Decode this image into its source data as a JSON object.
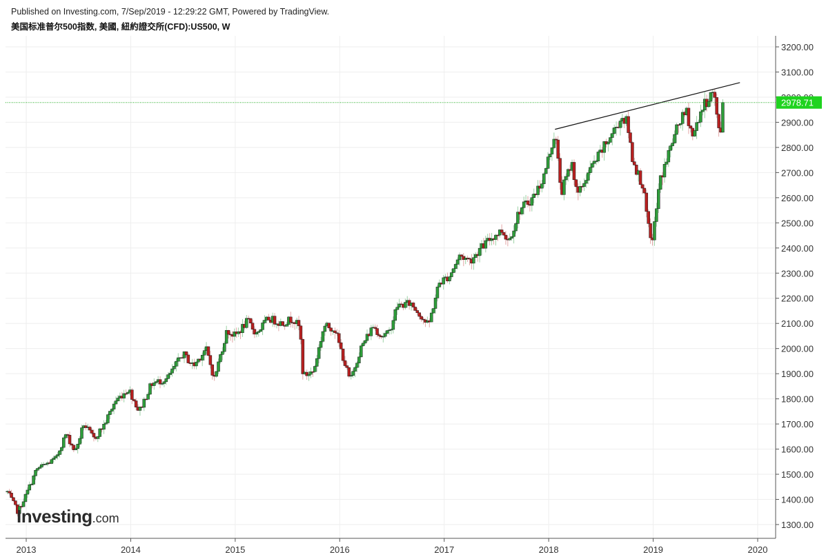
{
  "header": {
    "published": "Published on Investing.com, 7/Sep/2019 - 12:29:22 GMT, Powered by TradingView.",
    "instrument": "美国标准普尔500指数, 美國, 紐約證交所(CFD):US500, W"
  },
  "logo": {
    "main": "Investing",
    "suffix": ".com"
  },
  "colors": {
    "up": "#2e9e3a",
    "down": "#b82020",
    "wick_up": "#9bd1a4",
    "wick_down": "#e3a6a6",
    "grid": "#eeeeee",
    "last_price_line": "#1faa1f",
    "last_price_bg": "#1fd31f",
    "trendline": "#111111"
  },
  "chart_data": {
    "type": "candlestick",
    "title": "",
    "interval": "W",
    "xlabel": "",
    "ylabel": "",
    "ylim": [
      1270,
      3230
    ],
    "xlim": [
      2012.8,
      2020.2
    ],
    "y_ticks": [
      1300,
      1400,
      1500,
      1600,
      1700,
      1800,
      1900,
      2000,
      2100,
      2200,
      2300,
      2400,
      2500,
      2600,
      2700,
      2800,
      2900,
      3000,
      3100,
      3200
    ],
    "y_tick_labels": [
      "1300.00",
      "1400.00",
      "1500.00",
      "1600.00",
      "1700.00",
      "1800.00",
      "1900.00",
      "2000.00",
      "2100.00",
      "2200.00",
      "2300.00",
      "2400.00",
      "2500.00",
      "2600.00",
      "2700.00",
      "2800.00",
      "2900.00",
      "3000.00",
      "3100.00",
      "3200.00"
    ],
    "x_ticks": [
      2013,
      2014,
      2015,
      2016,
      2017,
      2018,
      2019,
      2020
    ],
    "x_tick_labels": [
      "2013",
      "2014",
      "2015",
      "2016",
      "2017",
      "2018",
      "2019",
      "2020"
    ],
    "last_price": 2978.71,
    "last_price_label": "2978.71",
    "trendline": [
      {
        "t": 2018.06,
        "v": 2872
      },
      {
        "t": 2019.83,
        "v": 3058
      }
    ],
    "anchors": [
      [
        2012.82,
        1430
      ],
      [
        2012.92,
        1350
      ],
      [
        2013.0,
        1420
      ],
      [
        2013.1,
        1520
      ],
      [
        2013.28,
        1560
      ],
      [
        2013.38,
        1660
      ],
      [
        2013.47,
        1590
      ],
      [
        2013.55,
        1700
      ],
      [
        2013.65,
        1640
      ],
      [
        2013.75,
        1700
      ],
      [
        2013.85,
        1790
      ],
      [
        2013.98,
        1840
      ],
      [
        2014.08,
        1750
      ],
      [
        2014.2,
        1860
      ],
      [
        2014.35,
        1880
      ],
      [
        2014.5,
        1980
      ],
      [
        2014.6,
        1930
      ],
      [
        2014.72,
        2000
      ],
      [
        2014.8,
        1880
      ],
      [
        2014.92,
        2070
      ],
      [
        2015.0,
        2050
      ],
      [
        2015.12,
        2110
      ],
      [
        2015.2,
        2060
      ],
      [
        2015.32,
        2120
      ],
      [
        2015.45,
        2100
      ],
      [
        2015.55,
        2120
      ],
      [
        2015.62,
        2080
      ],
      [
        2015.65,
        1890
      ],
      [
        2015.75,
        1910
      ],
      [
        2015.85,
        2090
      ],
      [
        2015.95,
        2080
      ],
      [
        2016.0,
        2010
      ],
      [
        2016.1,
        1870
      ],
      [
        2016.2,
        2000
      ],
      [
        2016.32,
        2090
      ],
      [
        2016.4,
        2050
      ],
      [
        2016.47,
        2060
      ],
      [
        2016.55,
        2170
      ],
      [
        2016.68,
        2180
      ],
      [
        2016.78,
        2130
      ],
      [
        2016.85,
        2090
      ],
      [
        2016.95,
        2260
      ],
      [
        2017.05,
        2290
      ],
      [
        2017.15,
        2370
      ],
      [
        2017.25,
        2350
      ],
      [
        2017.33,
        2390
      ],
      [
        2017.45,
        2440
      ],
      [
        2017.55,
        2470
      ],
      [
        2017.62,
        2430
      ],
      [
        2017.72,
        2550
      ],
      [
        2017.85,
        2600
      ],
      [
        2017.95,
        2680
      ],
      [
        2018.06,
        2860
      ],
      [
        2018.12,
        2620
      ],
      [
        2018.22,
        2740
      ],
      [
        2018.28,
        2610
      ],
      [
        2018.38,
        2700
      ],
      [
        2018.5,
        2780
      ],
      [
        2018.6,
        2850
      ],
      [
        2018.7,
        2920
      ],
      [
        2018.75,
        2900
      ],
      [
        2018.8,
        2760
      ],
      [
        2018.85,
        2700
      ],
      [
        2018.9,
        2650
      ],
      [
        2018.97,
        2430
      ],
      [
        2019.0,
        2450
      ],
      [
        2019.06,
        2660
      ],
      [
        2019.15,
        2780
      ],
      [
        2019.25,
        2900
      ],
      [
        2019.32,
        2940
      ],
      [
        2019.38,
        2840
      ],
      [
        2019.45,
        2940
      ],
      [
        2019.55,
        3010
      ],
      [
        2019.58,
        3020
      ],
      [
        2019.62,
        2880
      ],
      [
        2019.65,
        2870
      ],
      [
        2019.68,
        2978.71
      ]
    ]
  }
}
